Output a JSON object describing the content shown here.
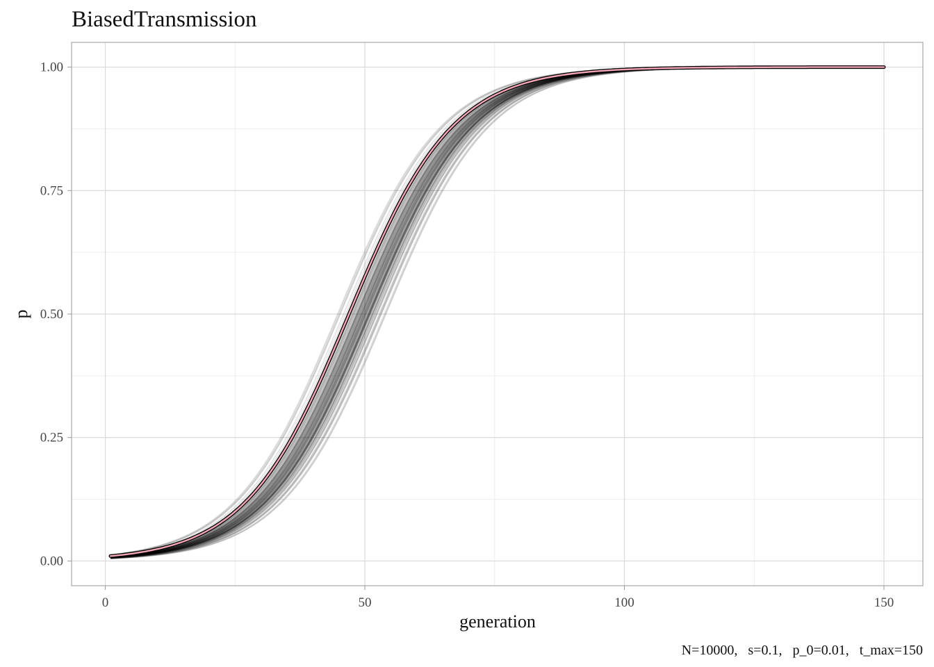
{
  "chart_data": {
    "type": "line",
    "title": "BiasedTransmission",
    "xlabel": "generation",
    "ylabel": "p",
    "caption": "N=10000,   s=0.1,   p_0=0.01,   t_max=150",
    "xlim": [
      -6.5,
      157.5
    ],
    "ylim": [
      -0.05,
      1.05
    ],
    "x_ticks": [
      0,
      50,
      100,
      150
    ],
    "x_tick_labels": [
      "0",
      "50",
      "100",
      "150"
    ],
    "y_ticks": [
      0,
      0.25,
      0.5,
      0.75,
      1
    ],
    "y_tick_labels": [
      "0.00",
      "0.25",
      "0.50",
      "0.75",
      "1.00"
    ],
    "grid": true,
    "legend": "none",
    "simulation_runs": {
      "count": 100,
      "color": "#000000",
      "opacity": 0.1,
      "model": "logistic",
      "rate": 0.1,
      "p0": 0.01,
      "x_start": 1,
      "x_end": 150,
      "midpoint_range": [
        44,
        55
      ]
    },
    "series": [
      {
        "color": "#000000",
        "note": "mean trajectory (black outline)",
        "p0": 0.01,
        "rate": 0.1,
        "x_start": 1,
        "x_end": 150
      },
      {
        "color": "#f4a6b8",
        "note": "expected trajectory (pink)",
        "p0": 0.01,
        "rate": 0.1,
        "x_start": 1,
        "x_end": 150
      }
    ],
    "colors": {
      "runs": "#000000",
      "mean": "#000000",
      "expected": "#f4a6b8",
      "panel_border": "#a6a6a6",
      "grid_major": "#d9d9d9",
      "grid_minor": "#ececec"
    }
  }
}
